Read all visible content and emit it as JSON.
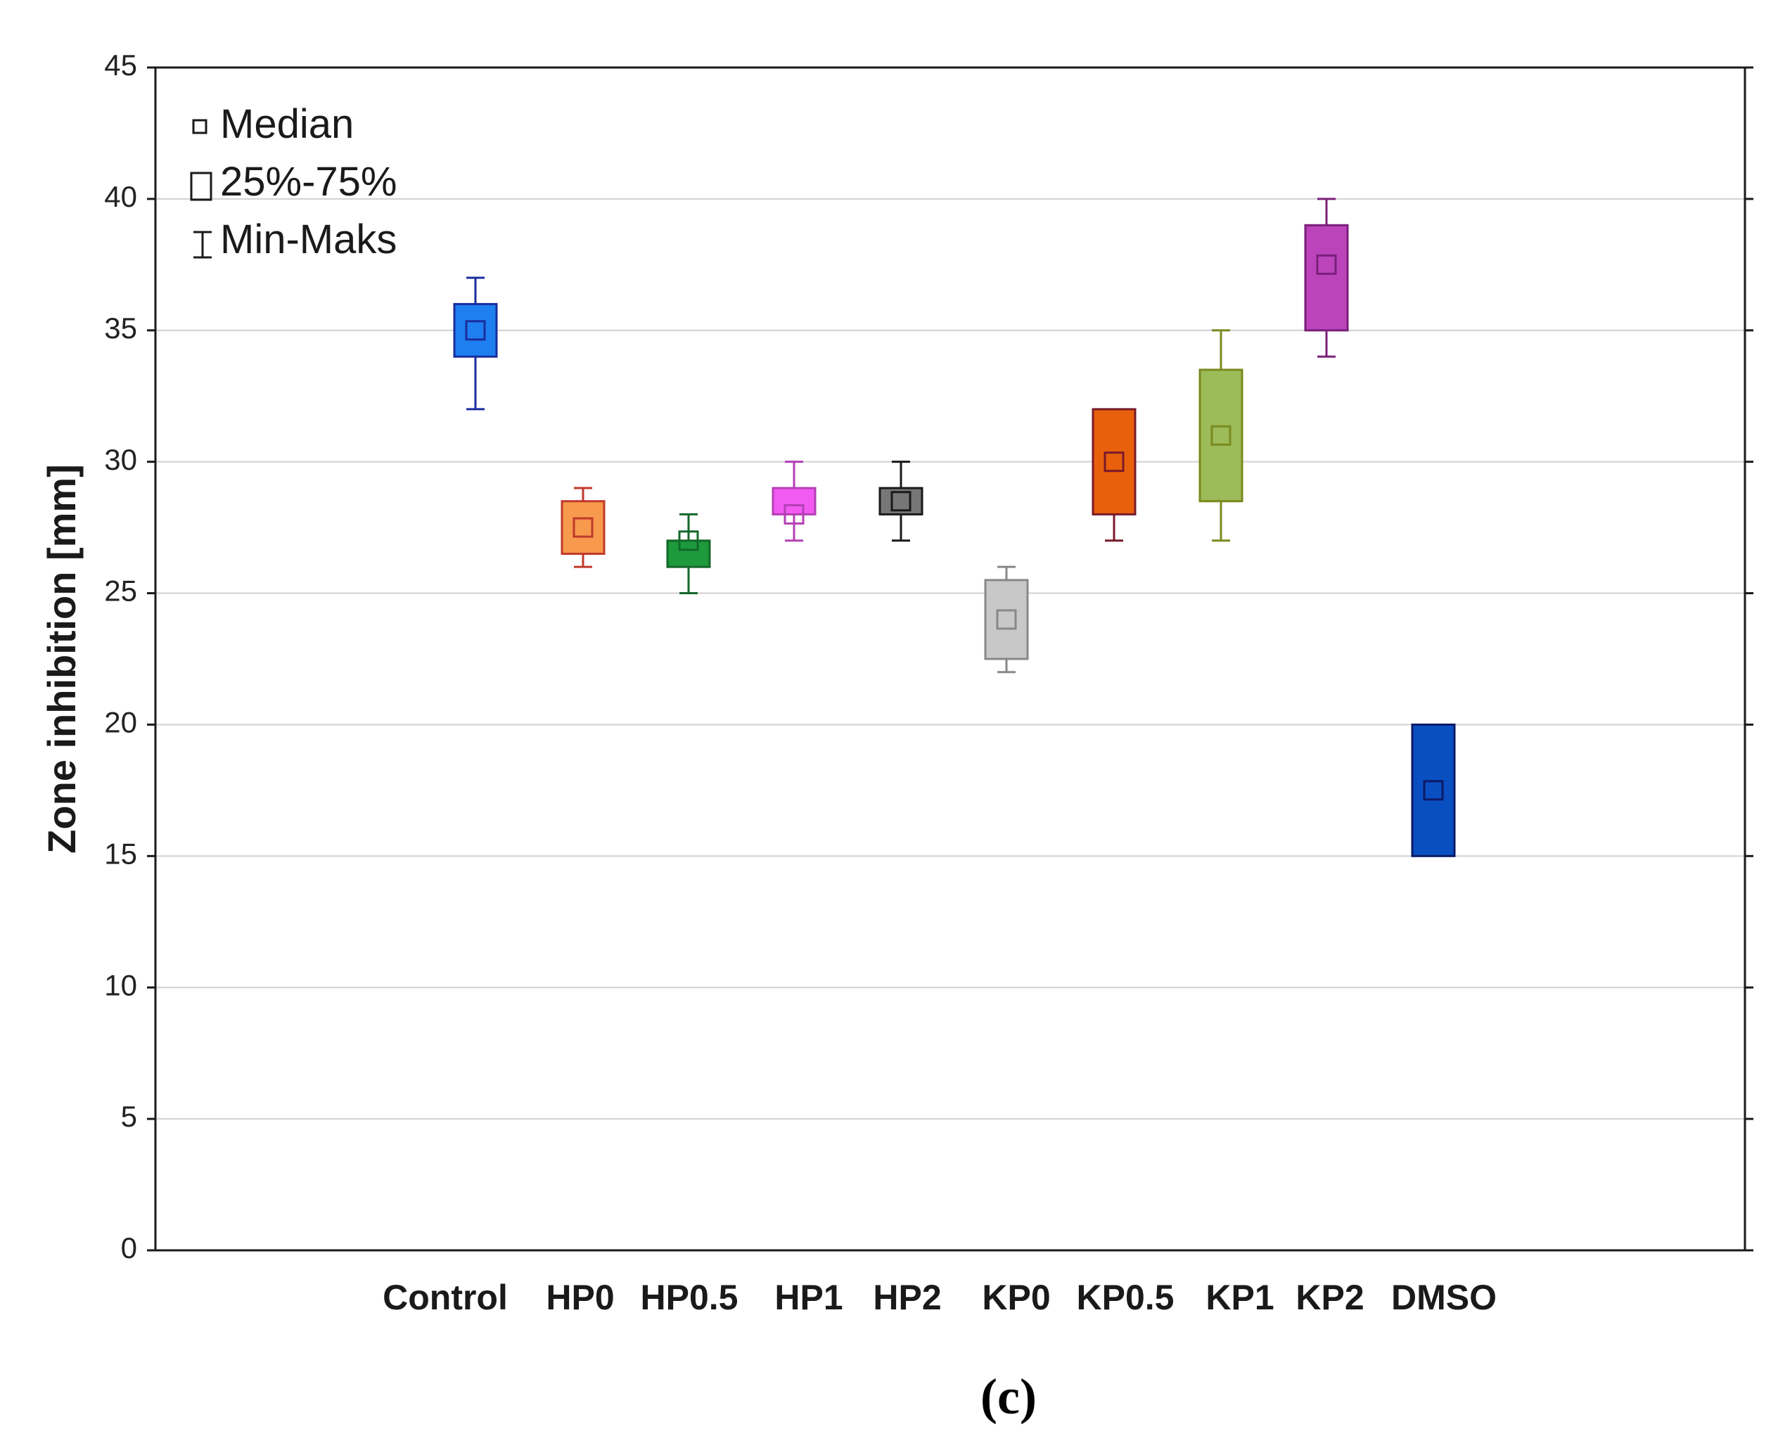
{
  "chart_data": {
    "type": "box",
    "title": "",
    "xlabel": "",
    "ylabel": "Zone inhibition [mm]",
    "ylim": [
      0,
      45
    ],
    "yticks": [
      0,
      5,
      10,
      15,
      20,
      25,
      30,
      35,
      40,
      45
    ],
    "grid": true,
    "legend_position": "top-left",
    "legend": {
      "median": "Median",
      "box": "25%-75%",
      "whisker": "Min-Maks"
    },
    "categories": [
      "Control",
      "HP0",
      "HP0.5",
      "HP1",
      "HP2",
      "KP0",
      "KP0.5",
      "KP1",
      "KP2",
      "DMSO"
    ],
    "series": [
      {
        "name": "Control",
        "min": 32,
        "q1": 34,
        "median": 35,
        "q3": 36,
        "max": 37,
        "fill": "#1e7ff0",
        "stroke": "#1a2e9e"
      },
      {
        "name": "HP0",
        "min": 26,
        "q1": 26.5,
        "median": 27.5,
        "q3": 28.5,
        "max": 29,
        "fill": "#f79a4d",
        "stroke": "#c0392b"
      },
      {
        "name": "HP0.5",
        "min": 25,
        "q1": 26,
        "median": 27,
        "q3": 27,
        "max": 28,
        "fill": "#1d9a3c",
        "stroke": "#14672a"
      },
      {
        "name": "HP1",
        "min": 27,
        "q1": 28,
        "median": 28,
        "q3": 29,
        "max": 30,
        "fill": "#f25af2",
        "stroke": "#b53fb5"
      },
      {
        "name": "HP2",
        "min": 27,
        "q1": 28,
        "median": 28.5,
        "q3": 29,
        "max": 30,
        "fill": "#777777",
        "stroke": "#1a1a1a"
      },
      {
        "name": "KP0",
        "min": 22,
        "q1": 22.5,
        "median": 24,
        "q3": 25.5,
        "max": 26,
        "fill": "#c8c8c8",
        "stroke": "#888888"
      },
      {
        "name": "KP0.5",
        "min": 27,
        "q1": 28,
        "median": 30,
        "q3": 32,
        "max": 32,
        "fill": "#e8600c",
        "stroke": "#7a1a2a"
      },
      {
        "name": "KP1",
        "min": 27,
        "q1": 28.5,
        "median": 31,
        "q3": 33.5,
        "max": 35,
        "fill": "#9cbb59",
        "stroke": "#7a8a1e"
      },
      {
        "name": "KP2",
        "min": 34,
        "q1": 35,
        "median": 37.5,
        "q3": 39,
        "max": 40,
        "fill": "#bb44bb",
        "stroke": "#7a1f7a"
      },
      {
        "name": "DMSO",
        "min": 15,
        "q1": 15,
        "median": 17.5,
        "q3": 20,
        "max": 20,
        "fill": "#0a4fc2",
        "stroke": "#0a1a66"
      }
    ]
  },
  "caption": "(c)",
  "colors": {
    "axis": "#1a1a1a",
    "grid": "#d0d0d0",
    "background": "#ffffff"
  }
}
